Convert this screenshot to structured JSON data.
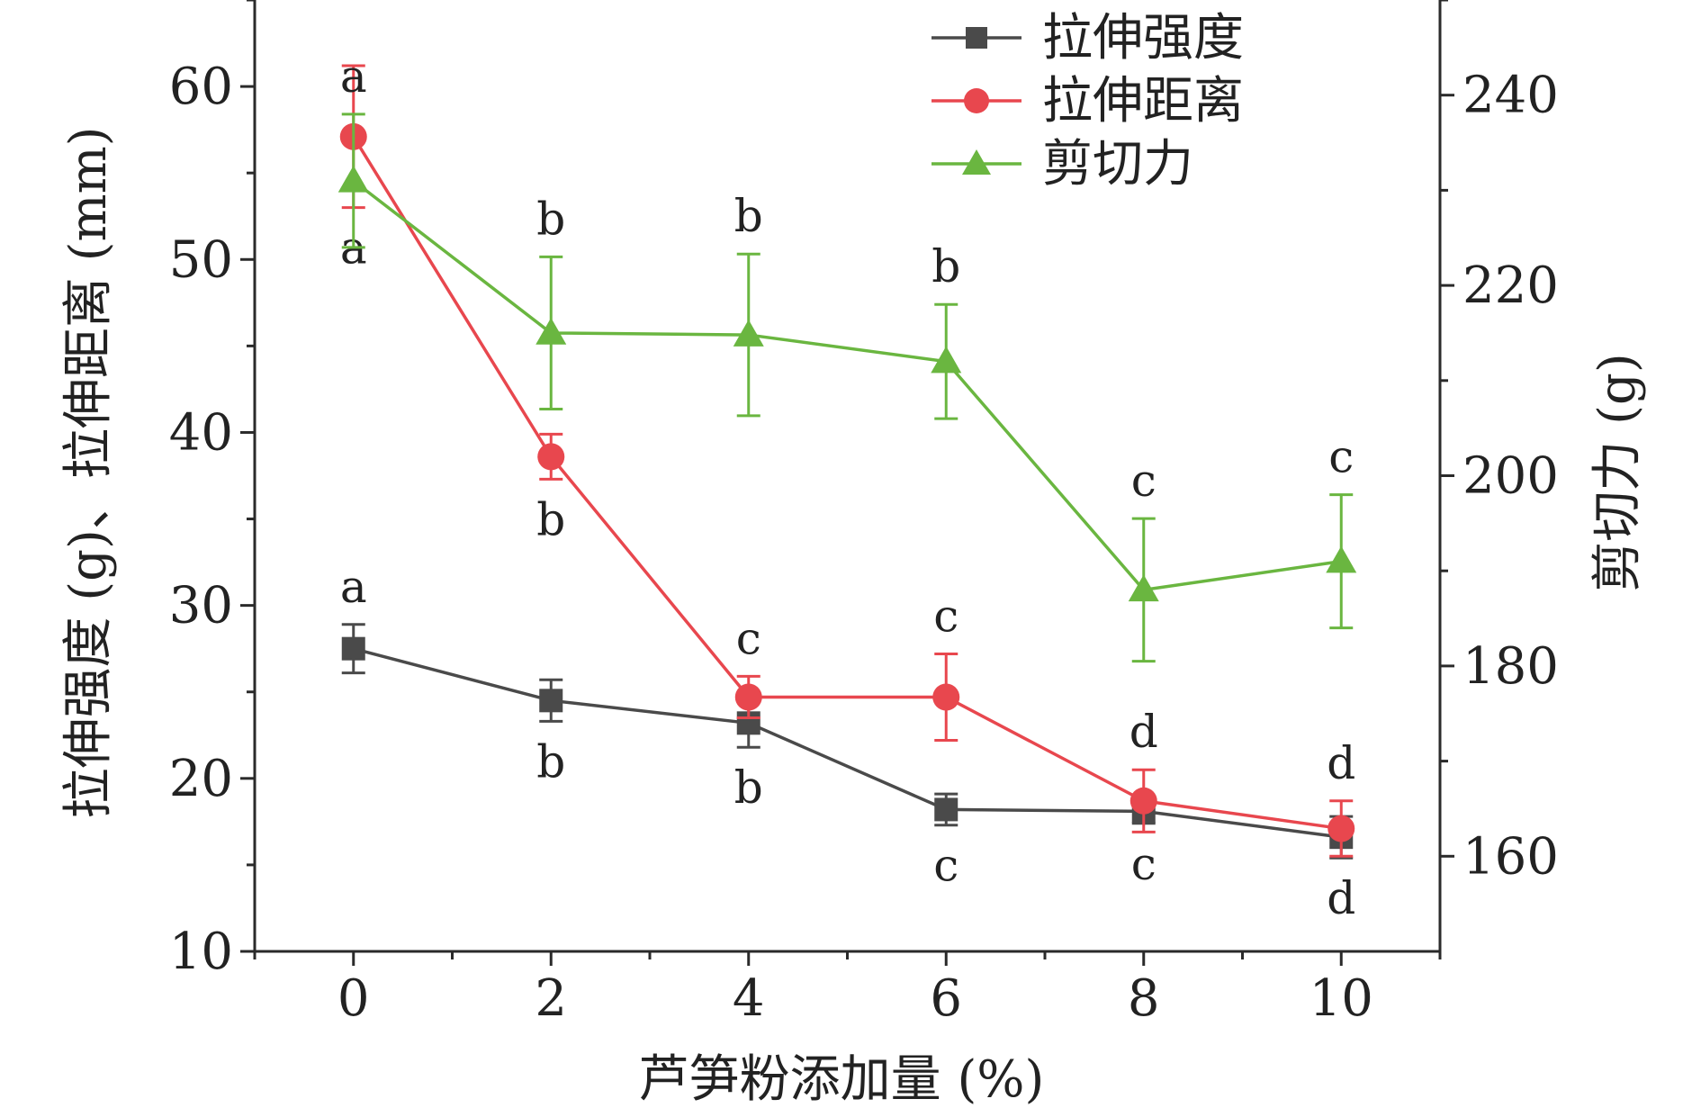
{
  "chart_data": {
    "type": "line",
    "x": [
      0,
      2,
      4,
      6,
      8,
      10
    ],
    "xlabel": "芦笋粉添加量 (%)",
    "x_ticks": [
      "0",
      "2",
      "4",
      "6",
      "8",
      "10"
    ],
    "xlim": [
      -1,
      11
    ],
    "ylabel_left": "拉伸强度 (g)、拉伸距离 (mm)",
    "ylim_left": [
      10,
      65
    ],
    "yticks_left": [
      "10",
      "20",
      "30",
      "40",
      "50",
      "60"
    ],
    "ylabel_right": "剪切力 (g)",
    "ylim_right": [
      150,
      250
    ],
    "yticks_right": [
      "160",
      "180",
      "200",
      "220",
      "240"
    ],
    "legend_position": "top-right",
    "series": [
      {
        "name": "拉伸强度",
        "axis": "left",
        "color": "#4a4a4a",
        "marker": "square",
        "values": [
          27.5,
          24.5,
          23.2,
          18.2,
          18.1,
          16.6
        ],
        "errors": [
          1.4,
          1.2,
          1.4,
          0.9,
          0.7,
          1.2
        ],
        "labels": [
          "a",
          "b",
          "b",
          "c",
          "c",
          "d"
        ],
        "label_pos": [
          "above",
          "below",
          "below",
          "below",
          "below",
          "below"
        ]
      },
      {
        "name": "拉伸距离",
        "axis": "left",
        "color": "#e8474e",
        "marker": "circle",
        "values": [
          57.1,
          38.6,
          24.7,
          24.7,
          18.7,
          17.1
        ],
        "errors": [
          4.1,
          1.3,
          1.2,
          2.5,
          1.8,
          1.6
        ],
        "labels": [
          "a",
          "b",
          "c",
          "c",
          "d",
          "d"
        ],
        "label_pos": [
          "below",
          "below",
          "above",
          "above",
          "above",
          "above"
        ]
      },
      {
        "name": "剪切力",
        "axis": "right",
        "color": "#6ab640",
        "marker": "triangle",
        "values": [
          231.0,
          215.0,
          214.8,
          212.0,
          188.0,
          191.0
        ],
        "errors": [
          7.0,
          8.0,
          8.5,
          6.0,
          7.5,
          7.0
        ],
        "labels": [
          "a",
          "b",
          "b",
          "b",
          "c",
          "c"
        ],
        "label_pos": [
          "above",
          "above",
          "above",
          "above",
          "above",
          "above"
        ]
      }
    ]
  }
}
